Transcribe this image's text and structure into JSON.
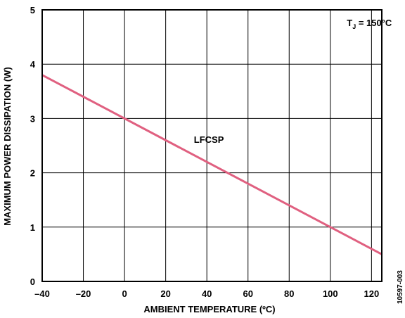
{
  "chart_data": {
    "type": "line",
    "xlabel": "AMBIENT TEMPERATURE (ºC)",
    "ylabel": "MAXIMUM POWER DISSIPATION (W)",
    "xlim": [
      -40,
      125
    ],
    "ylim": [
      0,
      5
    ],
    "x_ticks": [
      -40,
      -20,
      0,
      20,
      40,
      60,
      80,
      100,
      120
    ],
    "x_tick_labels": [
      "–40",
      "–20",
      "0",
      "20",
      "40",
      "60",
      "80",
      "100",
      "120"
    ],
    "y_ticks": [
      0,
      1,
      2,
      3,
      4,
      5
    ],
    "y_tick_labels": [
      "0",
      "1",
      "2",
      "3",
      "4",
      "5"
    ],
    "grid": true,
    "series": [
      {
        "name": "LFCSP",
        "color": "#e06080",
        "x": [
          -40,
          125
        ],
        "y": [
          3.8,
          0.5
        ]
      }
    ],
    "annotations": [
      {
        "text_main": "T",
        "text_sub": "J",
        "text_rest": " = 150°C",
        "x": 108,
        "y": 4.7
      },
      {
        "text": "LFCSP",
        "x": 41,
        "y": 2.55
      }
    ],
    "side_note": "10597-003"
  }
}
